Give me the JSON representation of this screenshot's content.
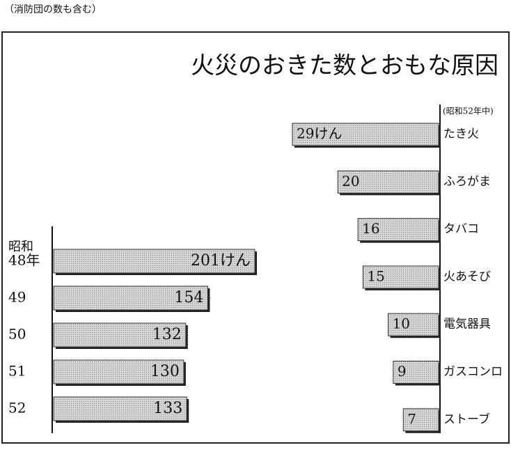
{
  "header": {
    "note": "（消防団の数も含む）",
    "title": "火災のおきた数とおもな原因"
  },
  "chart_data": [
    {
      "type": "hbar",
      "y_label": "昭和",
      "categories": [
        "48年",
        "49",
        "50",
        "51",
        "52"
      ],
      "values": [
        201,
        154,
        132,
        130,
        133
      ],
      "value_labels": [
        "201けん",
        "154",
        "132",
        "130",
        "133"
      ],
      "xlim": [
        0,
        201
      ],
      "color": "#c9c9c9"
    },
    {
      "type": "hbar-left",
      "subtitle": "(昭和52年中)",
      "categories": [
        "たき火",
        "ふろがま",
        "タバコ",
        "火あそび",
        "電気器具",
        "ガスコンロ",
        "ストーブ"
      ],
      "values": [
        29,
        20,
        16,
        15,
        10,
        9,
        7
      ],
      "value_labels": [
        "29けん",
        "20",
        "16",
        "15",
        "10",
        "9",
        "7"
      ],
      "xlim": [
        0,
        29
      ],
      "color": "#c9c9c9"
    }
  ]
}
